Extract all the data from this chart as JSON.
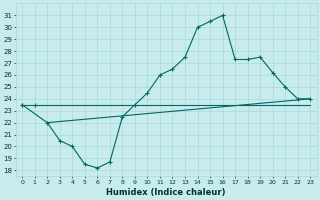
{
  "xlabel": "Humidex (Indice chaleur)",
  "xlim": [
    -0.5,
    23.5
  ],
  "ylim": [
    17.5,
    32.0
  ],
  "yticks": [
    18,
    19,
    20,
    21,
    22,
    23,
    24,
    25,
    26,
    27,
    28,
    29,
    30,
    31
  ],
  "xticks": [
    0,
    1,
    2,
    3,
    4,
    5,
    6,
    7,
    8,
    9,
    10,
    11,
    12,
    13,
    14,
    15,
    16,
    17,
    18,
    19,
    20,
    21,
    22,
    23
  ],
  "bg_color": "#c8ecec",
  "grid_color": "#a8d8d8",
  "line_color": "#006666",
  "line1_x": [
    0,
    1,
    23
  ],
  "line1_y": [
    23.5,
    23.5,
    23.5
  ],
  "line2_x": [
    2,
    23
  ],
  "line2_y": [
    22.0,
    24.0
  ],
  "line3_x": [
    0,
    2,
    3,
    4,
    5,
    6,
    7,
    8,
    9,
    10,
    11,
    12,
    13,
    14,
    15,
    16,
    17,
    18,
    19,
    20,
    21,
    22,
    23
  ],
  "line3_y": [
    23.5,
    22.0,
    20.5,
    20.0,
    18.5,
    18.2,
    18.7,
    22.5,
    23.5,
    24.5,
    26.0,
    26.5,
    27.5,
    30.0,
    30.5,
    31.0,
    27.3,
    27.3,
    27.5,
    26.2,
    25.0,
    24.0,
    24.0
  ]
}
